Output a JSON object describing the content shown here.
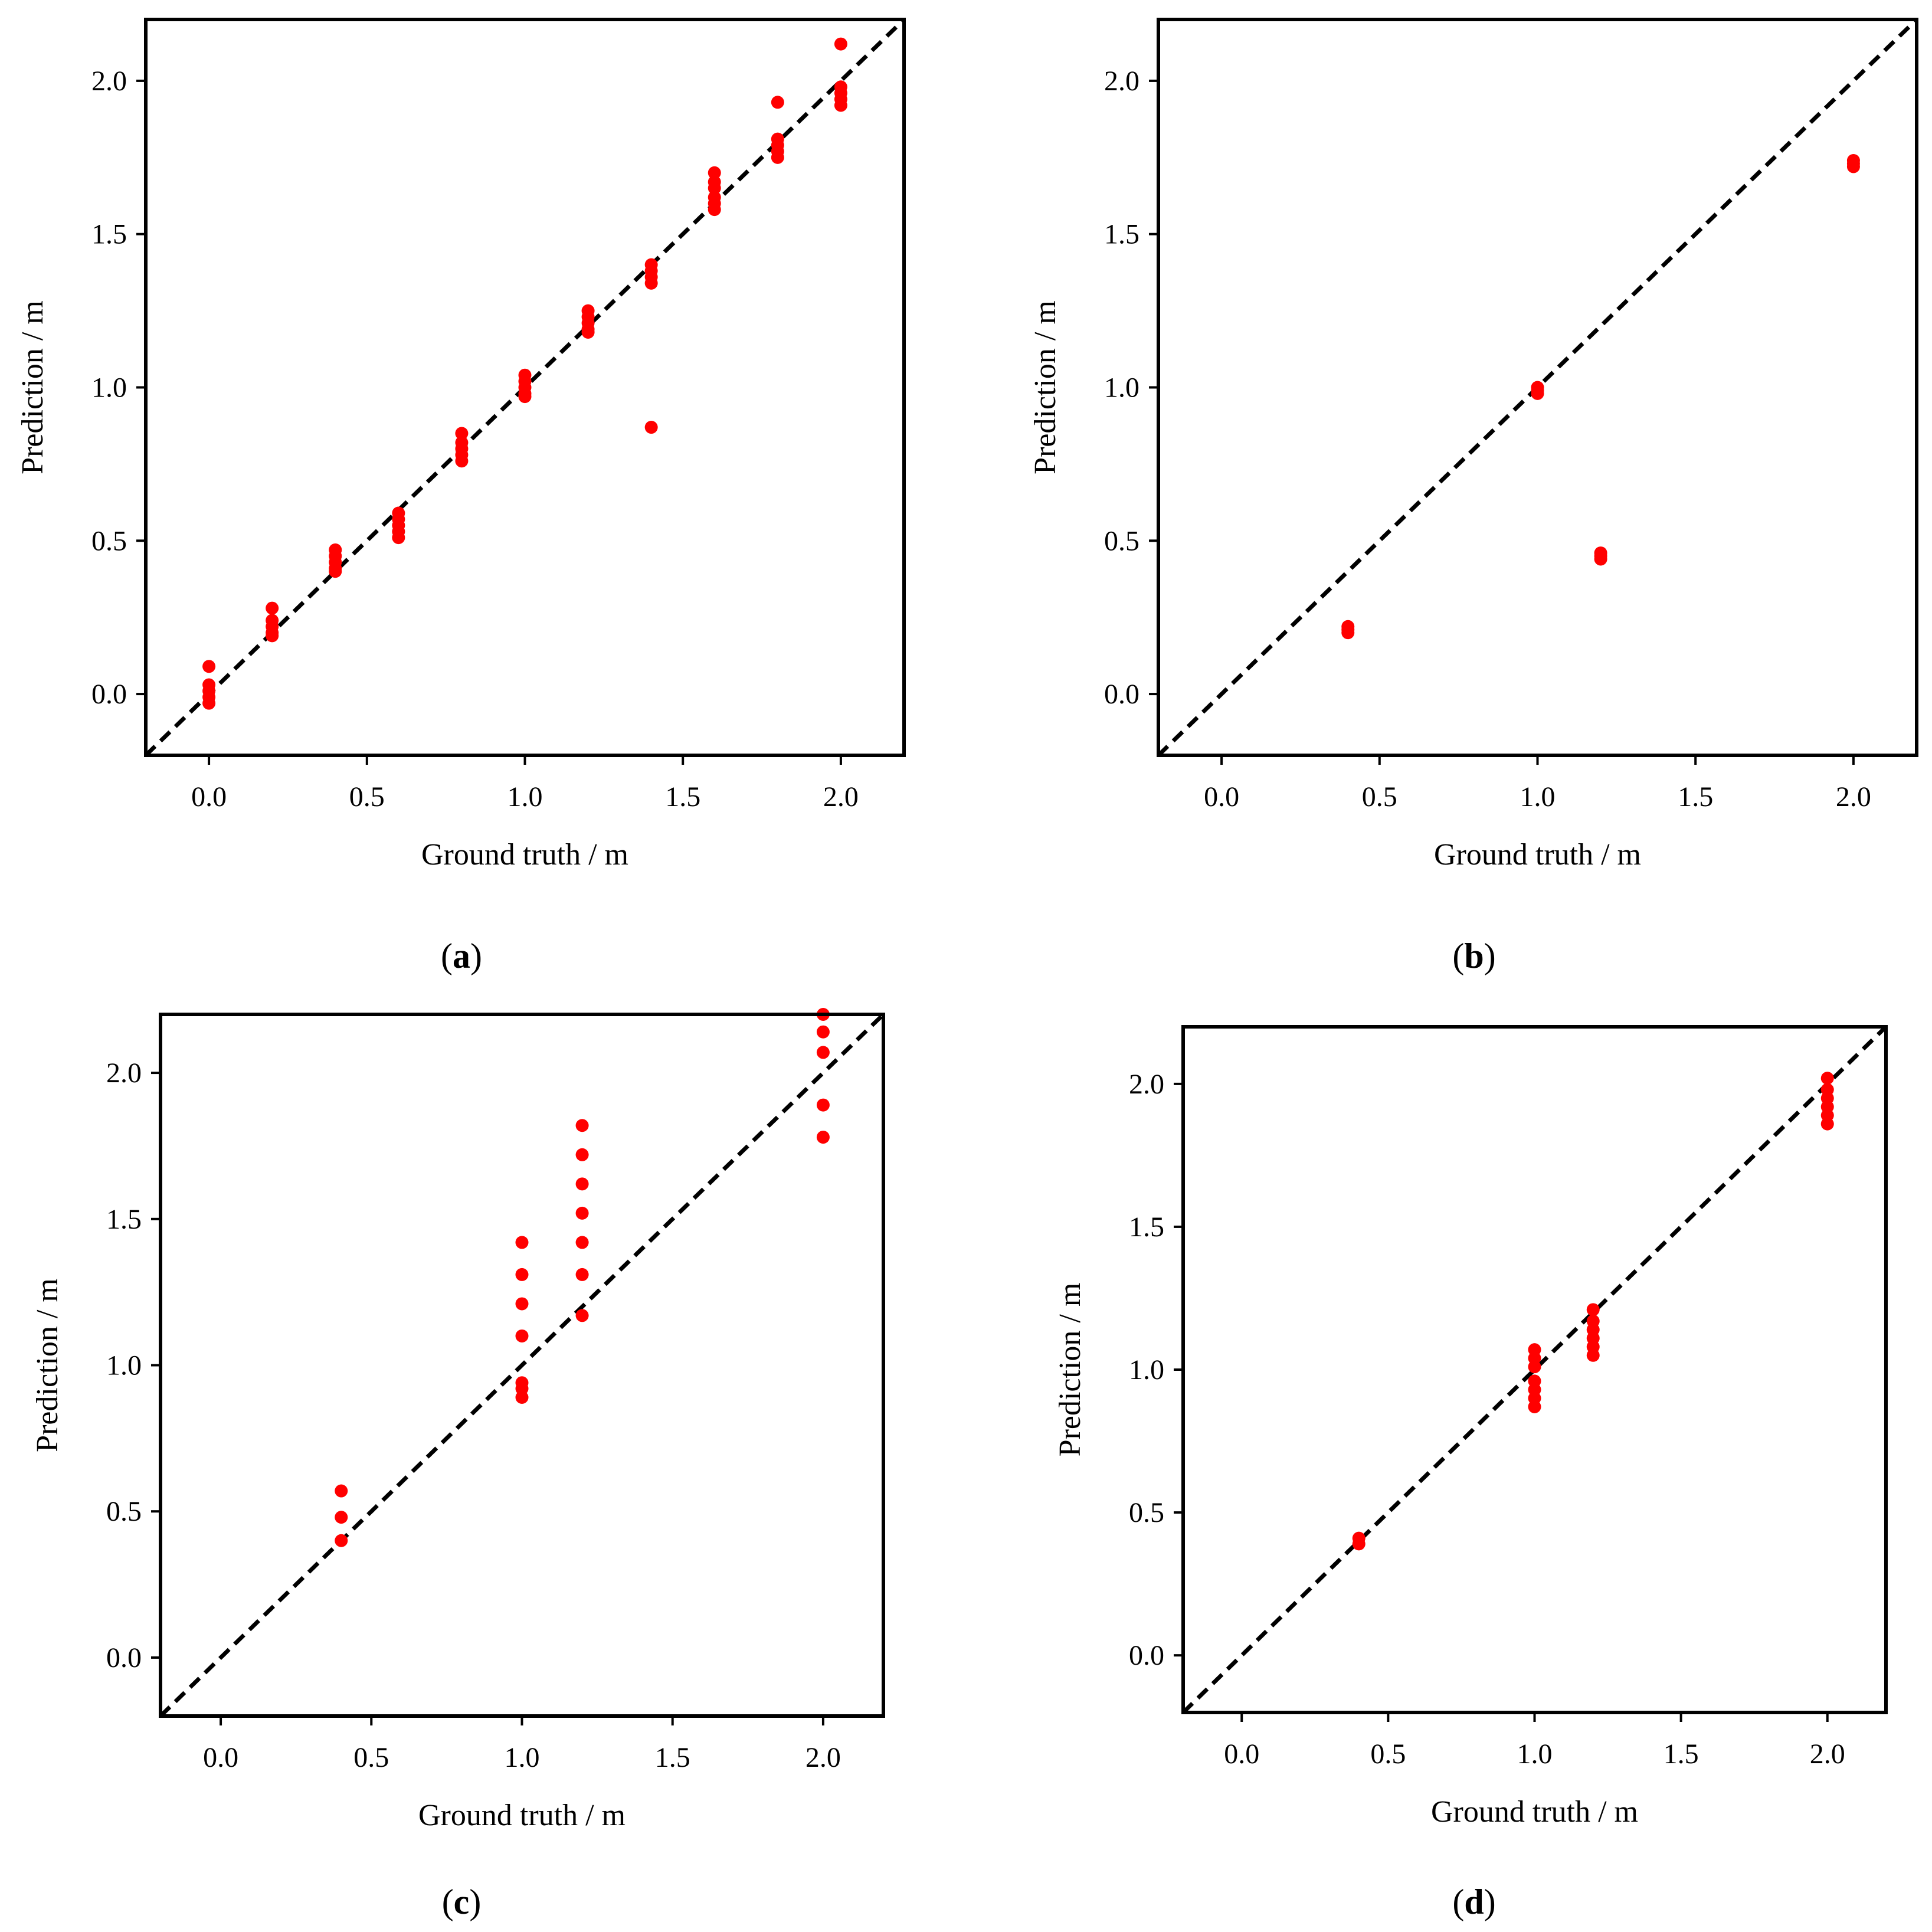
{
  "colors": {
    "point": "#ff0000",
    "diagonal": "#000000",
    "frame": "#000000"
  },
  "chart_data": [
    {
      "type": "scatter",
      "panel": "a",
      "caption": {
        "open": "(",
        "letter": "a",
        "close": ")"
      },
      "xlabel": "Ground truth / m",
      "ylabel": "Prediction / m",
      "xlim": [
        -0.2,
        2.2
      ],
      "ylim": [
        -0.2,
        2.2
      ],
      "xticks": [
        "0.0",
        "0.5",
        "1.0",
        "1.5",
        "2.0"
      ],
      "yticks": [
        "0.0",
        "0.5",
        "1.0",
        "1.5",
        "2.0"
      ],
      "reference_line": "y = x (dashed)",
      "points": [
        [
          0.0,
          0.09
        ],
        [
          0.0,
          0.03
        ],
        [
          0.0,
          0.01
        ],
        [
          0.0,
          -0.01
        ],
        [
          0.0,
          -0.03
        ],
        [
          0.2,
          0.28
        ],
        [
          0.2,
          0.24
        ],
        [
          0.2,
          0.22
        ],
        [
          0.2,
          0.2
        ],
        [
          0.2,
          0.19
        ],
        [
          0.4,
          0.47
        ],
        [
          0.4,
          0.45
        ],
        [
          0.4,
          0.43
        ],
        [
          0.4,
          0.41
        ],
        [
          0.4,
          0.4
        ],
        [
          0.6,
          0.59
        ],
        [
          0.6,
          0.57
        ],
        [
          0.6,
          0.55
        ],
        [
          0.6,
          0.53
        ],
        [
          0.6,
          0.51
        ],
        [
          0.8,
          0.85
        ],
        [
          0.8,
          0.82
        ],
        [
          0.8,
          0.8
        ],
        [
          0.8,
          0.78
        ],
        [
          0.8,
          0.76
        ],
        [
          1.0,
          1.04
        ],
        [
          1.0,
          1.02
        ],
        [
          1.0,
          1.0
        ],
        [
          1.0,
          0.98
        ],
        [
          1.0,
          0.97
        ],
        [
          1.2,
          1.25
        ],
        [
          1.2,
          1.23
        ],
        [
          1.2,
          1.21
        ],
        [
          1.2,
          1.19
        ],
        [
          1.2,
          1.18
        ],
        [
          1.4,
          1.4
        ],
        [
          1.4,
          1.38
        ],
        [
          1.4,
          1.36
        ],
        [
          1.4,
          1.34
        ],
        [
          1.4,
          0.87
        ],
        [
          1.6,
          1.7
        ],
        [
          1.6,
          1.67
        ],
        [
          1.6,
          1.65
        ],
        [
          1.6,
          1.62
        ],
        [
          1.6,
          1.6
        ],
        [
          1.6,
          1.58
        ],
        [
          1.8,
          1.93
        ],
        [
          1.8,
          1.81
        ],
        [
          1.8,
          1.79
        ],
        [
          1.8,
          1.77
        ],
        [
          1.8,
          1.75
        ],
        [
          2.0,
          2.12
        ],
        [
          2.0,
          1.98
        ],
        [
          2.0,
          1.96
        ],
        [
          2.0,
          1.94
        ],
        [
          2.0,
          1.92
        ]
      ]
    },
    {
      "type": "scatter",
      "panel": "b",
      "caption": {
        "open": "(",
        "letter": "b",
        "close": ")"
      },
      "xlabel": "Ground truth / m",
      "ylabel": "Prediction / m",
      "xlim": [
        -0.2,
        2.2
      ],
      "ylim": [
        -0.2,
        2.2
      ],
      "xticks": [
        "0.0",
        "0.5",
        "1.0",
        "1.5",
        "2.0"
      ],
      "yticks": [
        "0.0",
        "0.5",
        "1.0",
        "1.5",
        "2.0"
      ],
      "reference_line": "y = x (dashed)",
      "points": [
        [
          0.4,
          0.22
        ],
        [
          0.4,
          0.21
        ],
        [
          0.4,
          0.2
        ],
        [
          1.0,
          1.0
        ],
        [
          1.0,
          0.99
        ],
        [
          1.0,
          0.98
        ],
        [
          1.2,
          0.46
        ],
        [
          1.2,
          0.45
        ],
        [
          1.2,
          0.44
        ],
        [
          2.0,
          1.74
        ],
        [
          2.0,
          1.73
        ],
        [
          2.0,
          1.72
        ]
      ]
    },
    {
      "type": "scatter",
      "panel": "c",
      "caption": {
        "open": "(",
        "letter": "c",
        "close": ")"
      },
      "xlabel": "Ground truth / m",
      "ylabel": "Prediction / m",
      "xlim": [
        -0.2,
        2.2
      ],
      "ylim": [
        -0.2,
        2.2
      ],
      "xticks": [
        "0.0",
        "0.5",
        "1.0",
        "1.5",
        "2.0"
      ],
      "yticks": [
        "0.0",
        "0.5",
        "1.0",
        "1.5",
        "2.0"
      ],
      "reference_line": "y = x (dashed)",
      "points": [
        [
          0.4,
          0.57
        ],
        [
          0.4,
          0.48
        ],
        [
          0.4,
          0.4
        ],
        [
          1.0,
          1.42
        ],
        [
          1.0,
          1.31
        ],
        [
          1.0,
          1.21
        ],
        [
          1.0,
          1.1
        ],
        [
          1.0,
          0.94
        ],
        [
          1.0,
          0.92
        ],
        [
          1.0,
          0.89
        ],
        [
          1.2,
          1.82
        ],
        [
          1.2,
          1.72
        ],
        [
          1.2,
          1.62
        ],
        [
          1.2,
          1.52
        ],
        [
          1.2,
          1.42
        ],
        [
          1.2,
          1.31
        ],
        [
          1.2,
          1.17
        ],
        [
          2.0,
          2.2
        ],
        [
          2.0,
          2.14
        ],
        [
          2.0,
          2.07
        ],
        [
          2.0,
          1.89
        ],
        [
          2.0,
          1.78
        ]
      ]
    },
    {
      "type": "scatter",
      "panel": "d",
      "caption": {
        "open": "(",
        "letter": "d",
        "close": ")"
      },
      "xlabel": "Ground truth / m",
      "ylabel": "Prediction / m",
      "xlim": [
        -0.2,
        2.2
      ],
      "ylim": [
        -0.2,
        2.2
      ],
      "xticks": [
        "0.0",
        "0.5",
        "1.0",
        "1.5",
        "2.0"
      ],
      "yticks": [
        "0.0",
        "0.5",
        "1.0",
        "1.5",
        "2.0"
      ],
      "reference_line": "y = x (dashed)",
      "points": [
        [
          0.4,
          0.41
        ],
        [
          0.4,
          0.39
        ],
        [
          1.0,
          1.07
        ],
        [
          1.0,
          1.04
        ],
        [
          1.0,
          1.01
        ],
        [
          1.0,
          0.96
        ],
        [
          1.0,
          0.93
        ],
        [
          1.0,
          0.9
        ],
        [
          1.0,
          0.87
        ],
        [
          1.2,
          1.21
        ],
        [
          1.2,
          1.17
        ],
        [
          1.2,
          1.14
        ],
        [
          1.2,
          1.11
        ],
        [
          1.2,
          1.08
        ],
        [
          1.2,
          1.05
        ],
        [
          2.0,
          2.02
        ],
        [
          2.0,
          1.98
        ],
        [
          2.0,
          1.95
        ],
        [
          2.0,
          1.92
        ],
        [
          2.0,
          1.89
        ],
        [
          2.0,
          1.86
        ]
      ]
    }
  ]
}
